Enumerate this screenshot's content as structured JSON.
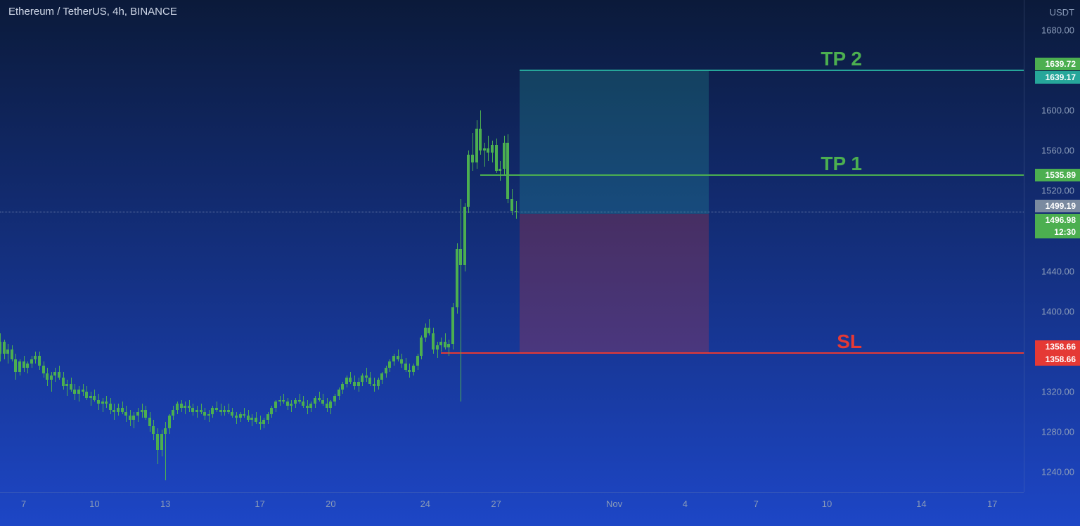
{
  "chart": {
    "title": "Ethereum / TetherUS, 4h, BINANCE",
    "y_axis_label": "USDT",
    "background_gradient": {
      "top": "#0b1a3a",
      "bottom": "#1d46c6"
    },
    "title_color": "#d0d8e8",
    "axis_text_color": "#8a9bb8",
    "price_range": {
      "min": 1220,
      "max": 1710
    },
    "y_ticks": [
      1680.0,
      1600.0,
      1560.0,
      1520.0,
      1440.0,
      1400.0,
      1320.0,
      1280.0,
      1240.0
    ],
    "x_ticks": [
      {
        "label": "7",
        "index": 6
      },
      {
        "label": "10",
        "index": 24
      },
      {
        "label": "13",
        "index": 42
      },
      {
        "label": "17",
        "index": 66
      },
      {
        "label": "20",
        "index": 84
      },
      {
        "label": "24",
        "index": 108
      },
      {
        "label": "27",
        "index": 126
      },
      {
        "label": "Nov",
        "index": 156
      },
      {
        "label": "4",
        "index": 174
      },
      {
        "label": "7",
        "index": 192
      },
      {
        "label": "10",
        "index": 210
      },
      {
        "label": "14",
        "index": 234
      },
      {
        "label": "17",
        "index": 252
      }
    ],
    "x_range": {
      "start": 0,
      "end": 260
    },
    "candle_color_up": "#4caf50",
    "candle_color_down": "#4caf50",
    "candle_width": 4
  },
  "trade": {
    "entry": 1496.98,
    "entry_box_start_index": 132,
    "entry_box_end_index": 180,
    "sl": {
      "price": 1358.66,
      "label": "SL",
      "color": "#e53935",
      "line_start_index": 112
    },
    "tp1": {
      "price": 1535.89,
      "label": "TP 1",
      "color": "#4caf50",
      "line_start_index": 122
    },
    "tp2": {
      "price": 1639.72,
      "tag2": 1639.17,
      "label": "TP 2",
      "color": "#26a69a",
      "line_start_index": 132
    },
    "profit_zone_color": "rgba(38,166,154,0.25)",
    "loss_zone_color": "rgba(229,57,53,0.25)",
    "label_text_tp_color": "#4caf50",
    "label_text_sl_color": "#e53935"
  },
  "current": {
    "price": 1499.19,
    "countdown": "12:30",
    "price_tag_color": "#7a8aa0",
    "countdown_color": "#4caf50"
  },
  "tags": {
    "tp2_a": {
      "value": "1639.72",
      "bg": "#4caf50"
    },
    "tp2_b": {
      "value": "1639.17",
      "bg": "#26a69a"
    },
    "tp1": {
      "value": "1535.89",
      "bg": "#4caf50"
    },
    "cur": {
      "value": "1499.19",
      "bg": "#7a8aa0"
    },
    "entry": {
      "value": "1496.98",
      "bg": "#4caf50"
    },
    "cd": {
      "value": "12:30",
      "bg": "#4caf50"
    },
    "sl_a": {
      "value": "1358.66",
      "bg": "#e53935"
    },
    "sl_b": {
      "value": "1358.66",
      "bg": "#e53935"
    }
  },
  "candles": [
    [
      1358,
      1378,
      1350,
      1370
    ],
    [
      1370,
      1372,
      1352,
      1358
    ],
    [
      1358,
      1368,
      1348,
      1362
    ],
    [
      1362,
      1366,
      1350,
      1352
    ],
    [
      1352,
      1358,
      1332,
      1340
    ],
    [
      1340,
      1352,
      1336,
      1350
    ],
    [
      1350,
      1356,
      1340,
      1344
    ],
    [
      1344,
      1350,
      1338,
      1348
    ],
    [
      1348,
      1356,
      1344,
      1352
    ],
    [
      1352,
      1360,
      1348,
      1356
    ],
    [
      1356,
      1360,
      1342,
      1346
    ],
    [
      1346,
      1350,
      1334,
      1338
    ],
    [
      1338,
      1344,
      1326,
      1332
    ],
    [
      1332,
      1340,
      1320,
      1336
    ],
    [
      1336,
      1344,
      1330,
      1340
    ],
    [
      1340,
      1346,
      1332,
      1334
    ],
    [
      1334,
      1340,
      1322,
      1326
    ],
    [
      1326,
      1332,
      1316,
      1328
    ],
    [
      1328,
      1334,
      1320,
      1322
    ],
    [
      1322,
      1328,
      1312,
      1318
    ],
    [
      1318,
      1326,
      1310,
      1322
    ],
    [
      1322,
      1328,
      1316,
      1320
    ],
    [
      1320,
      1326,
      1312,
      1314
    ],
    [
      1314,
      1320,
      1306,
      1316
    ],
    [
      1316,
      1322,
      1310,
      1312
    ],
    [
      1312,
      1318,
      1302,
      1308
    ],
    [
      1308,
      1314,
      1300,
      1310
    ],
    [
      1310,
      1316,
      1304,
      1308
    ],
    [
      1308,
      1314,
      1298,
      1302
    ],
    [
      1302,
      1308,
      1292,
      1300
    ],
    [
      1300,
      1308,
      1296,
      1304
    ],
    [
      1304,
      1310,
      1298,
      1300
    ],
    [
      1300,
      1306,
      1290,
      1296
    ],
    [
      1296,
      1302,
      1286,
      1292
    ],
    [
      1292,
      1300,
      1284,
      1296
    ],
    [
      1296,
      1304,
      1290,
      1300
    ],
    [
      1300,
      1308,
      1294,
      1302
    ],
    [
      1302,
      1306,
      1292,
      1294
    ],
    [
      1294,
      1300,
      1280,
      1286
    ],
    [
      1286,
      1292,
      1272,
      1278
    ],
    [
      1278,
      1284,
      1248,
      1262
    ],
    [
      1262,
      1282,
      1256,
      1278
    ],
    [
      1278,
      1290,
      1232,
      1284
    ],
    [
      1284,
      1298,
      1278,
      1296
    ],
    [
      1296,
      1306,
      1292,
      1302
    ],
    [
      1302,
      1310,
      1298,
      1308
    ],
    [
      1308,
      1312,
      1300,
      1304
    ],
    [
      1304,
      1310,
      1298,
      1306
    ],
    [
      1306,
      1312,
      1300,
      1304
    ],
    [
      1304,
      1308,
      1296,
      1300
    ],
    [
      1300,
      1306,
      1294,
      1302
    ],
    [
      1302,
      1308,
      1298,
      1300
    ],
    [
      1300,
      1304,
      1292,
      1296
    ],
    [
      1296,
      1302,
      1290,
      1298
    ],
    [
      1298,
      1306,
      1294,
      1304
    ],
    [
      1304,
      1310,
      1300,
      1302
    ],
    [
      1302,
      1308,
      1296,
      1300
    ],
    [
      1300,
      1306,
      1296,
      1302
    ],
    [
      1302,
      1308,
      1298,
      1300
    ],
    [
      1300,
      1304,
      1294,
      1296
    ],
    [
      1296,
      1300,
      1288,
      1294
    ],
    [
      1294,
      1300,
      1290,
      1298
    ],
    [
      1298,
      1304,
      1294,
      1296
    ],
    [
      1296,
      1302,
      1290,
      1292
    ],
    [
      1292,
      1298,
      1286,
      1294
    ],
    [
      1294,
      1300,
      1288,
      1290
    ],
    [
      1290,
      1296,
      1282,
      1288
    ],
    [
      1288,
      1294,
      1284,
      1292
    ],
    [
      1292,
      1300,
      1288,
      1298
    ],
    [
      1298,
      1306,
      1294,
      1304
    ],
    [
      1304,
      1312,
      1300,
      1310
    ],
    [
      1310,
      1316,
      1306,
      1312
    ],
    [
      1312,
      1318,
      1308,
      1310
    ],
    [
      1310,
      1314,
      1302,
      1306
    ],
    [
      1306,
      1312,
      1300,
      1308
    ],
    [
      1308,
      1314,
      1304,
      1312
    ],
    [
      1312,
      1318,
      1308,
      1310
    ],
    [
      1310,
      1316,
      1304,
      1306
    ],
    [
      1306,
      1312,
      1298,
      1304
    ],
    [
      1304,
      1310,
      1300,
      1308
    ],
    [
      1308,
      1316,
      1304,
      1314
    ],
    [
      1314,
      1320,
      1310,
      1312
    ],
    [
      1312,
      1318,
      1306,
      1308
    ],
    [
      1308,
      1314,
      1300,
      1304
    ],
    [
      1304,
      1312,
      1298,
      1310
    ],
    [
      1310,
      1318,
      1306,
      1316
    ],
    [
      1316,
      1324,
      1312,
      1322
    ],
    [
      1322,
      1330,
      1318,
      1328
    ],
    [
      1328,
      1336,
      1324,
      1334
    ],
    [
      1334,
      1340,
      1328,
      1330
    ],
    [
      1330,
      1336,
      1322,
      1326
    ],
    [
      1326,
      1334,
      1320,
      1330
    ],
    [
      1330,
      1338,
      1326,
      1336
    ],
    [
      1336,
      1344,
      1330,
      1334
    ],
    [
      1334,
      1340,
      1326,
      1328
    ],
    [
      1328,
      1334,
      1320,
      1326
    ],
    [
      1326,
      1334,
      1322,
      1332
    ],
    [
      1332,
      1340,
      1328,
      1338
    ],
    [
      1338,
      1346,
      1334,
      1344
    ],
    [
      1344,
      1352,
      1340,
      1350
    ],
    [
      1350,
      1358,
      1346,
      1356
    ],
    [
      1356,
      1362,
      1350,
      1352
    ],
    [
      1352,
      1358,
      1344,
      1348
    ],
    [
      1348,
      1354,
      1340,
      1342
    ],
    [
      1342,
      1348,
      1334,
      1340
    ],
    [
      1340,
      1348,
      1336,
      1346
    ],
    [
      1346,
      1358,
      1342,
      1356
    ],
    [
      1356,
      1376,
      1352,
      1374
    ],
    [
      1374,
      1388,
      1370,
      1384
    ],
    [
      1384,
      1392,
      1376,
      1378
    ],
    [
      1378,
      1384,
      1358,
      1362
    ],
    [
      1362,
      1370,
      1354,
      1366
    ],
    [
      1366,
      1374,
      1360,
      1370
    ],
    [
      1370,
      1378,
      1362,
      1364
    ],
    [
      1364,
      1372,
      1356,
      1368
    ],
    [
      1368,
      1408,
      1362,
      1404
    ],
    [
      1404,
      1468,
      1398,
      1462
    ],
    [
      1462,
      1512,
      1310,
      1446
    ],
    [
      1446,
      1508,
      1440,
      1504
    ],
    [
      1504,
      1560,
      1498,
      1556
    ],
    [
      1556,
      1578,
      1540,
      1548
    ],
    [
      1548,
      1590,
      1542,
      1582
    ],
    [
      1582,
      1600,
      1556,
      1560
    ],
    [
      1560,
      1568,
      1544,
      1562
    ],
    [
      1562,
      1575,
      1550,
      1558
    ],
    [
      1558,
      1570,
      1548,
      1566
    ],
    [
      1566,
      1572,
      1538,
      1540
    ],
    [
      1540,
      1550,
      1530,
      1542
    ],
    [
      1542,
      1575,
      1536,
      1568
    ],
    [
      1568,
      1576,
      1508,
      1512
    ],
    [
      1512,
      1522,
      1496,
      1500
    ],
    [
      1500,
      1510,
      1492,
      1499
    ]
  ]
}
